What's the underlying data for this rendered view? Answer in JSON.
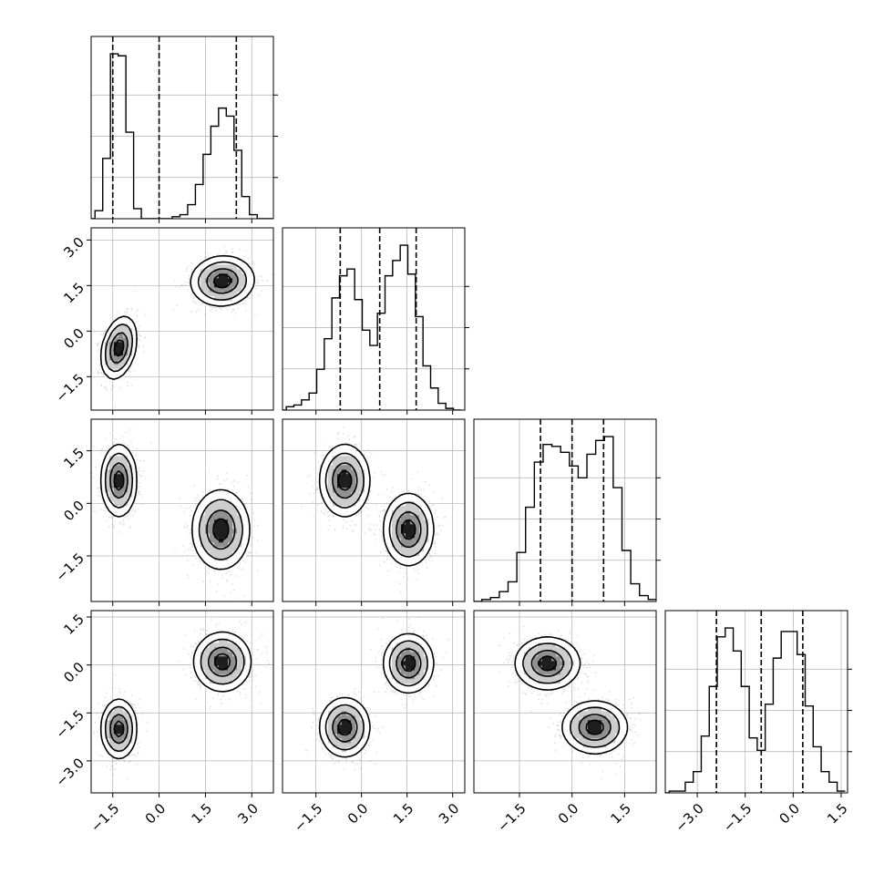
{
  "chart_data": {
    "type": "corner",
    "title": "",
    "n_params": 4,
    "grid": true,
    "parameters": [
      {
        "histogram": {
          "bin_centers": [
            -2.2,
            -1.95,
            -1.7,
            -1.45,
            -1.2,
            -0.95,
            -0.7,
            -0.45,
            -0.2,
            0.05,
            0.3,
            0.55,
            0.8,
            1.05,
            1.3,
            1.55,
            1.8,
            2.05,
            2.3,
            2.55,
            2.8,
            3.05,
            3.3,
            3.55
          ],
          "counts": [
            0,
            4,
            30,
            82,
            81,
            43,
            5,
            0,
            0,
            0,
            0,
            1,
            2,
            7,
            17,
            32,
            46,
            55,
            51,
            34,
            11,
            2,
            0,
            0
          ],
          "xlim": [
            -2.2,
            3.7
          ]
        },
        "quantiles": [
          -1.5,
          0.0,
          2.5
        ],
        "ticks": [
          -1.5,
          0.0,
          1.5,
          3.0
        ],
        "tick_labels": [
          "−1.5",
          "0.0",
          "1.5",
          "3.0"
        ]
      },
      {
        "histogram": {
          "bin_centers": [
            -2.6,
            -2.35,
            -2.1,
            -1.85,
            -1.6,
            -1.35,
            -1.1,
            -0.85,
            -0.6,
            -0.35,
            -0.1,
            0.15,
            0.4,
            0.65,
            0.9,
            1.15,
            1.4,
            1.65,
            1.9,
            2.15,
            2.4,
            2.65,
            2.9,
            3.15
          ],
          "counts": [
            0,
            2,
            3,
            6,
            10,
            24,
            42,
            66,
            79,
            83,
            65,
            47,
            38,
            57,
            79,
            88,
            97,
            80,
            55,
            26,
            13,
            4,
            1,
            0
          ],
          "xlim": [
            -2.6,
            3.4
          ]
        },
        "quantiles": [
          -0.7,
          0.6,
          1.8
        ],
        "ticks": [
          -1.5,
          0.0,
          1.5,
          3.0
        ],
        "tick_labels": [
          "−1.5",
          "0.0",
          "1.5",
          "3.0"
        ]
      },
      {
        "histogram": {
          "bin_centers": [
            -2.7,
            -2.45,
            -2.2,
            -1.95,
            -1.7,
            -1.45,
            -1.2,
            -0.95,
            -0.7,
            -0.45,
            -0.2,
            0.05,
            0.3,
            0.55,
            0.8,
            1.05,
            1.3,
            1.55,
            1.8,
            2.05,
            2.3
          ],
          "counts": [
            0,
            1,
            2,
            5,
            10,
            25,
            48,
            71,
            80,
            79,
            76,
            69,
            63,
            75,
            82,
            84,
            58,
            26,
            9,
            3,
            1
          ],
          "xlim": [
            -2.8,
            2.4
          ]
        },
        "quantiles": [
          -0.9,
          0.0,
          0.9
        ],
        "ticks": [
          -1.5,
          0.0,
          1.5
        ],
        "tick_labels": [
          "−1.5",
          "0.0",
          "1.5"
        ]
      },
      {
        "histogram": {
          "bin_centers": [
            -4.0,
            -3.75,
            -3.5,
            -3.25,
            -3.0,
            -2.75,
            -2.5,
            -2.25,
            -2.0,
            -1.75,
            -1.5,
            -1.25,
            -1.0,
            -0.75,
            -0.5,
            -0.25,
            0.0,
            0.25,
            0.5,
            0.75,
            1.0,
            1.25,
            1.5
          ],
          "counts": [
            0,
            1,
            1,
            6,
            12,
            32,
            60,
            88,
            93,
            80,
            60,
            31,
            24,
            50,
            76,
            91,
            91,
            78,
            49,
            26,
            12,
            6,
            1
          ],
          "xlim": [
            -4.0,
            1.7
          ]
        },
        "quantiles": [
          -2.4,
          -1.0,
          0.3
        ],
        "ticks": [
          -3.0,
          -1.5,
          0.0,
          1.5
        ],
        "tick_labels": [
          "−3.0",
          "−1.5",
          "0.0",
          "1.5"
        ]
      }
    ],
    "pairs": [
      {
        "row": 1,
        "col": 0,
        "modes": [
          {
            "x": -1.3,
            "y": -0.55,
            "sx": 0.28,
            "sy": 0.5,
            "rho": 0.3,
            "weight": 0.5
          },
          {
            "x": 2.05,
            "y": 1.65,
            "sx": 0.5,
            "sy": 0.4,
            "rho": 0.05,
            "weight": 0.5
          }
        ]
      },
      {
        "row": 2,
        "col": 0,
        "modes": [
          {
            "x": -1.3,
            "y": 0.65,
            "sx": 0.28,
            "sy": 0.5,
            "rho": 0.0,
            "weight": 0.5
          },
          {
            "x": 2.0,
            "y": -0.75,
            "sx": 0.45,
            "sy": 0.55,
            "rho": 0.0,
            "weight": 0.5
          }
        ]
      },
      {
        "row": 2,
        "col": 1,
        "modes": [
          {
            "x": -0.55,
            "y": 0.65,
            "sx": 0.4,
            "sy": 0.5,
            "rho": 0.0,
            "weight": 0.5
          },
          {
            "x": 1.55,
            "y": -0.75,
            "sx": 0.4,
            "sy": 0.5,
            "rho": 0.0,
            "weight": 0.5
          }
        ]
      },
      {
        "row": 3,
        "col": 0,
        "modes": [
          {
            "x": -1.3,
            "y": -2.0,
            "sx": 0.28,
            "sy": 0.45,
            "rho": 0.0,
            "weight": 0.5
          },
          {
            "x": 2.05,
            "y": 0.1,
            "sx": 0.45,
            "sy": 0.45,
            "rho": 0.0,
            "weight": 0.5
          }
        ]
      },
      {
        "row": 3,
        "col": 1,
        "modes": [
          {
            "x": -0.55,
            "y": -1.95,
            "sx": 0.4,
            "sy": 0.45,
            "rho": 0.0,
            "weight": 0.5
          },
          {
            "x": 1.55,
            "y": 0.05,
            "sx": 0.4,
            "sy": 0.45,
            "rho": 0.0,
            "weight": 0.5
          }
        ]
      },
      {
        "row": 3,
        "col": 2,
        "modes": [
          {
            "x": -0.7,
            "y": 0.05,
            "sx": 0.45,
            "sy": 0.4,
            "rho": 0.0,
            "weight": 0.5
          },
          {
            "x": 0.65,
            "y": -1.95,
            "sx": 0.45,
            "sy": 0.4,
            "rho": 0.0,
            "weight": 0.5
          }
        ]
      }
    ],
    "contour_levels": [
      0.12,
      0.3,
      0.6,
      0.85
    ],
    "colors": {
      "hist_line": "#000000",
      "quantile_line": "#000000",
      "grid": "#b0b0b0",
      "scatter": "#8c8c8c",
      "density_dark": "#000000",
      "contour_fill": "#ffffff"
    }
  }
}
